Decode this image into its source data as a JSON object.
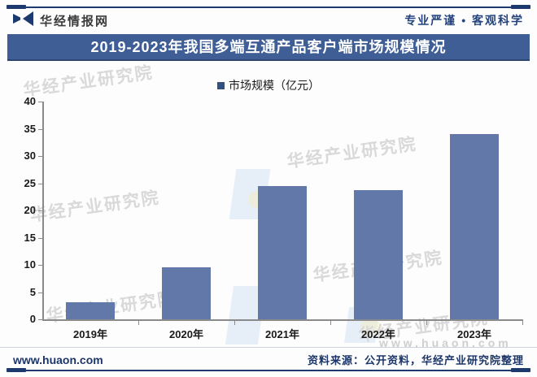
{
  "page": {
    "brand": "华经情报网",
    "top_right_slogan": "专业严谨 • 客观科学",
    "footer_site": "www.huaon.com",
    "footer_source": "资料来源：公开资料，华经产业研究院整理",
    "watermark_text": "华经产业研究院",
    "watermark_site": "www.huaon.com"
  },
  "colors": {
    "navy": "#1d3a6e",
    "title_bar_bg": "#3f5e96",
    "bar_fill": "#6278a8",
    "legend_swatch": "#32517e",
    "watermark": "#d9d9d9"
  },
  "chart_data": {
    "type": "bar",
    "title": "2019-2023年我国多端互通产品客户端市场规模情况",
    "legend_label": "市场规模（亿元）",
    "categories": [
      "2019年",
      "2020年",
      "2021年",
      "2022年",
      "2023年"
    ],
    "values": [
      3.1,
      9.5,
      24.5,
      23.7,
      34
    ],
    "xlabel": "",
    "ylabel": "",
    "ylim": [
      0,
      40
    ],
    "ytick_step": 5,
    "grid": false,
    "legend_position": "top-center"
  }
}
